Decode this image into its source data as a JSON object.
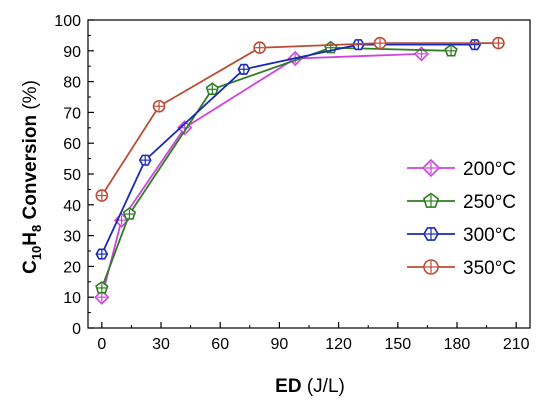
{
  "chart_data": {
    "type": "line",
    "title": "",
    "xlabel": {
      "bold": "ED",
      "rest": " (J/L)"
    },
    "ylabel": {
      "bold": "C",
      "sub1": "10",
      "mid": "H",
      "sub2": "8",
      "bold2": " Conversion",
      "rest": " (%)"
    },
    "xlim": [
      -7,
      217
    ],
    "ylim": [
      0,
      100
    ],
    "xticks": [
      0,
      30,
      60,
      90,
      120,
      150,
      180,
      210
    ],
    "yticks": [
      0,
      10,
      20,
      30,
      40,
      50,
      60,
      70,
      80,
      90,
      100
    ],
    "grid": false,
    "legend_position": "center-right",
    "series": [
      {
        "name": "200°C",
        "color": "#cc44dd",
        "marker": "diamond",
        "points": [
          [
            0,
            10
          ],
          [
            10,
            35
          ],
          [
            42,
            65
          ],
          [
            98,
            87.5
          ],
          [
            162,
            89
          ]
        ]
      },
      {
        "name": "250°C",
        "color": "#2e7d22",
        "marker": "pentagon",
        "points": [
          [
            0,
            13
          ],
          [
            14,
            37
          ],
          [
            56,
            77.5
          ],
          [
            116,
            91
          ],
          [
            177,
            90
          ]
        ]
      },
      {
        "name": "300°C",
        "color": "#1a2ab8",
        "marker": "hexagon",
        "points": [
          [
            0,
            24
          ],
          [
            22,
            54.5
          ],
          [
            72,
            84
          ],
          [
            130,
            92
          ],
          [
            189,
            92
          ]
        ]
      },
      {
        "name": "350°C",
        "color": "#b84d36",
        "marker": "circle",
        "points": [
          [
            0,
            43
          ],
          [
            29,
            72
          ],
          [
            80,
            91
          ],
          [
            141,
            92.5
          ],
          [
            201,
            92.5
          ]
        ]
      }
    ]
  }
}
